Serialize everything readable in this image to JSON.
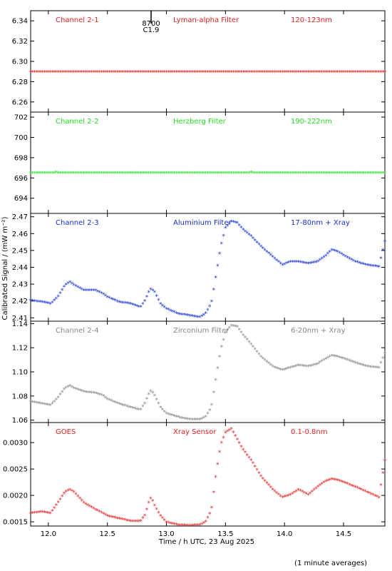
{
  "xaxis": {
    "label": "Time / h UTC, 23 Aug 2025",
    "range": [
      11.85,
      14.85
    ],
    "ticks": [
      "12.0",
      "12.5",
      "13.0",
      "13.5",
      "14.0",
      "14.5"
    ],
    "tick_values": [
      12.0,
      12.5,
      13.0,
      13.5,
      14.0,
      14.5
    ]
  },
  "ylabel": "Calibrated Signal / (mW m⁻²)",
  "footnote": "(1 minute averages)",
  "flare_marker": {
    "x": 12.87,
    "class": "C1.9",
    "id": "8700"
  },
  "chart_data": [
    {
      "type": "scatter",
      "channel": "Channel 2-1",
      "filter": "Lyman-alpha Filter",
      "band": "120-123nm",
      "color": "#e02020",
      "ylim": [
        6.25,
        6.35
      ],
      "yticks": [
        "6.26",
        "6.28",
        "6.30",
        "6.32",
        "6.34"
      ],
      "ytick_values": [
        6.26,
        6.28,
        6.3,
        6.32,
        6.34
      ],
      "x": [
        11.85,
        14.85
      ],
      "y": [
        6.289,
        6.289
      ]
    },
    {
      "type": "scatter",
      "channel": "Channel 2-2",
      "filter": "Herzberg Filter",
      "band": "190-222nm",
      "color": "#22dd22",
      "ylim": [
        692.5,
        702.5
      ],
      "yticks": [
        "694",
        "696",
        "698",
        "700",
        "702"
      ],
      "ytick_values": [
        694,
        696,
        698,
        700,
        702
      ],
      "x": [
        11.85,
        12.05,
        12.06,
        12.07,
        13.7,
        13.71,
        13.72,
        14.85
      ],
      "y": [
        696.45,
        696.45,
        696.6,
        696.45,
        696.45,
        696.6,
        696.45,
        696.45
      ]
    },
    {
      "type": "scatter",
      "channel": "Channel 2-3",
      "filter": "Aluminium Filter",
      "band": "17-80nm + Xray",
      "color": "#1530d0",
      "ylim": [
        2.408,
        2.472
      ],
      "yticks": [
        "2.41",
        "2.42",
        "2.43",
        "2.44",
        "2.45",
        "2.46",
        "2.47"
      ],
      "ytick_values": [
        2.41,
        2.42,
        2.43,
        2.44,
        2.45,
        2.46,
        2.47
      ],
      "x": [
        11.85,
        11.95,
        12.02,
        12.08,
        12.14,
        12.18,
        12.22,
        12.3,
        12.4,
        12.46,
        12.5,
        12.6,
        12.7,
        12.78,
        12.82,
        12.85,
        12.87,
        12.9,
        12.95,
        13.0,
        13.1,
        13.2,
        13.28,
        13.33,
        13.38,
        13.42,
        13.46,
        13.5,
        13.55,
        13.6,
        13.65,
        13.72,
        13.8,
        13.9,
        13.98,
        14.05,
        14.12,
        14.2,
        14.28,
        14.34,
        14.4,
        14.45,
        14.52,
        14.6,
        14.7,
        14.8,
        14.85
      ],
      "y": [
        2.42,
        2.419,
        2.418,
        2.422,
        2.429,
        2.431,
        2.429,
        2.426,
        2.426,
        2.424,
        2.422,
        2.419,
        2.418,
        2.416,
        2.42,
        2.425,
        2.427,
        2.425,
        2.418,
        2.415,
        2.412,
        2.411,
        2.41,
        2.412,
        2.418,
        2.435,
        2.452,
        2.463,
        2.467,
        2.466,
        2.462,
        2.458,
        2.452,
        2.446,
        2.441,
        2.443,
        2.443,
        2.442,
        2.443,
        2.446,
        2.45,
        2.449,
        2.446,
        2.443,
        2.441,
        2.44,
        2.455
      ]
    },
    {
      "type": "scatter",
      "channel": "Channel 2-4",
      "filter": "Zirconium Filter",
      "band": "6-20nm + Xray",
      "color": "#888888",
      "ylim": [
        1.058,
        1.142
      ],
      "yticks": [
        "1.06",
        "1.08",
        "1.10",
        "1.12",
        "1.14"
      ],
      "ytick_values": [
        1.06,
        1.08,
        1.1,
        1.12,
        1.14
      ],
      "x": [
        11.85,
        11.95,
        12.02,
        12.08,
        12.14,
        12.18,
        12.22,
        12.3,
        12.4,
        12.46,
        12.5,
        12.6,
        12.7,
        12.78,
        12.82,
        12.85,
        12.87,
        12.9,
        12.95,
        13.0,
        13.1,
        13.2,
        13.28,
        13.33,
        13.38,
        13.42,
        13.46,
        13.5,
        13.55,
        13.6,
        13.65,
        13.72,
        13.8,
        13.9,
        13.98,
        14.05,
        14.12,
        14.2,
        14.28,
        14.34,
        14.4,
        14.45,
        14.52,
        14.6,
        14.7,
        14.8,
        14.85
      ],
      "y": [
        1.075,
        1.073,
        1.072,
        1.078,
        1.086,
        1.088,
        1.086,
        1.083,
        1.082,
        1.08,
        1.077,
        1.073,
        1.07,
        1.068,
        1.074,
        1.081,
        1.084,
        1.08,
        1.07,
        1.065,
        1.062,
        1.06,
        1.06,
        1.062,
        1.07,
        1.095,
        1.118,
        1.132,
        1.138,
        1.137,
        1.13,
        1.122,
        1.112,
        1.104,
        1.101,
        1.103,
        1.105,
        1.104,
        1.106,
        1.11,
        1.113,
        1.112,
        1.11,
        1.107,
        1.104,
        1.103,
        1.115
      ]
    },
    {
      "type": "scatter",
      "channel": "GOES",
      "filter": "Xray Sensor",
      "band": "0.1-0.8nm",
      "color": "#e02020",
      "ylim": [
        0.00142,
        0.00338
      ],
      "yticks": [
        "0.0015",
        "0.0020",
        "0.0025",
        "0.0030"
      ],
      "ytick_values": [
        0.0015,
        0.002,
        0.0025,
        0.003
      ],
      "x": [
        11.85,
        11.95,
        12.02,
        12.08,
        12.14,
        12.18,
        12.22,
        12.3,
        12.4,
        12.46,
        12.5,
        12.6,
        12.7,
        12.78,
        12.82,
        12.85,
        12.87,
        12.9,
        12.95,
        13.0,
        13.1,
        13.2,
        13.28,
        13.33,
        13.38,
        13.42,
        13.46,
        13.5,
        13.55,
        13.6,
        13.65,
        13.72,
        13.8,
        13.9,
        13.98,
        14.05,
        14.12,
        14.2,
        14.28,
        14.34,
        14.4,
        14.45,
        14.52,
        14.6,
        14.7,
        14.8,
        14.85
      ],
      "y": [
        0.00165,
        0.00168,
        0.00165,
        0.00185,
        0.00205,
        0.0021,
        0.00205,
        0.00185,
        0.00172,
        0.00165,
        0.0016,
        0.00155,
        0.0015,
        0.0015,
        0.00162,
        0.00185,
        0.00195,
        0.0018,
        0.0016,
        0.00148,
        0.00143,
        0.00142,
        0.00143,
        0.00148,
        0.0017,
        0.0024,
        0.00295,
        0.00318,
        0.00325,
        0.00305,
        0.00285,
        0.00265,
        0.00235,
        0.0021,
        0.00195,
        0.002,
        0.0021,
        0.002,
        0.00215,
        0.00225,
        0.0023,
        0.00228,
        0.00222,
        0.00215,
        0.00205,
        0.00195,
        0.00265
      ]
    }
  ]
}
